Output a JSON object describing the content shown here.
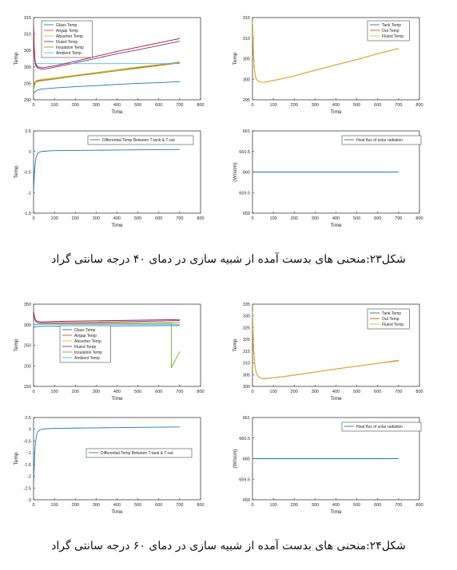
{
  "figure_captions": [
    "شکل۲۳:منحنی های بدست آمده از شبیه سازی در دمای ۴۰ درجه سانتی گراد",
    "شکل۲۴:منحنی های بدست آمده از شبیه سازی در دمای ۶۰ درجه سانتی گراد"
  ],
  "chart_data": [
    {
      "type": "line",
      "xlabel": "Time",
      "ylabel": "Temp",
      "xlim": [
        0,
        800
      ],
      "ylim": [
        290,
        315
      ],
      "xticks": [
        0,
        100,
        200,
        300,
        400,
        500,
        600,
        700,
        800
      ],
      "yticks": [
        290,
        295,
        300,
        305,
        310,
        315
      ],
      "legend_position": "top-left",
      "series": [
        {
          "name": "Glass Temp",
          "color": "#1f77b4",
          "x": [
            0,
            5,
            10,
            20,
            40,
            100,
            200,
            300,
            400,
            500,
            600,
            700
          ],
          "y": [
            292,
            292.3,
            292.6,
            293,
            293.3,
            293.6,
            294,
            294.3,
            294.7,
            295,
            295.2,
            295.5
          ]
        },
        {
          "name": "Airgap Temp",
          "color": "#d95319",
          "x": [
            0,
            5,
            10,
            20,
            40,
            100,
            200,
            300,
            400,
            500,
            600,
            700
          ],
          "y": [
            293,
            294.5,
            295.3,
            295.6,
            295.8,
            296.3,
            297.2,
            298,
            298.8,
            299.6,
            300.4,
            301.2
          ]
        },
        {
          "name": "Absorber Temp",
          "color": "#edb120",
          "x": [
            0,
            5,
            10,
            20,
            40,
            100,
            200,
            300,
            400,
            500,
            600,
            700
          ],
          "y": [
            293.5,
            295.2,
            295.8,
            296,
            296.2,
            296.7,
            297.5,
            298.3,
            299.2,
            300,
            300.7,
            301.5
          ]
        },
        {
          "name": "Fluied Temp",
          "color": "#7e2f8e",
          "x": [
            0,
            3,
            6,
            10,
            20,
            40,
            60,
            100,
            200,
            300,
            400,
            500,
            600,
            700
          ],
          "y": [
            312,
            305,
            302,
            300.5,
            299.6,
            299.3,
            299.4,
            299.9,
            301.2,
            302.6,
            304,
            305.2,
            306.5,
            307.8
          ]
        },
        {
          "name": "Insulation Temp",
          "color": "#77ac30",
          "x": [
            0,
            5,
            10,
            20,
            40,
            100,
            200,
            300,
            400,
            500,
            600,
            700
          ],
          "y": [
            293,
            294.6,
            295.3,
            295.8,
            296,
            296.4,
            297.3,
            298.1,
            298.9,
            299.8,
            300.6,
            301.4
          ]
        },
        {
          "name": "Ambient Temp",
          "color": "#4dbeee",
          "x": [
            0,
            700
          ],
          "y": [
            301,
            301
          ]
        },
        {
          "name": "",
          "color": "#a2142f",
          "x": [
            0,
            3,
            6,
            10,
            20,
            40,
            100,
            200,
            300,
            400,
            500,
            600,
            700
          ],
          "y": [
            313,
            306,
            302.5,
            301,
            300,
            299.7,
            300.3,
            301.7,
            303.2,
            304.7,
            306,
            307.3,
            308.6
          ]
        }
      ]
    },
    {
      "type": "line",
      "xlabel": "Time",
      "ylabel": "Temp",
      "xlim": [
        0,
        800
      ],
      "ylim": [
        295,
        315
      ],
      "xticks": [
        0,
        100,
        200,
        300,
        400,
        500,
        600,
        700,
        800
      ],
      "yticks": [
        295,
        300,
        305,
        310,
        315
      ],
      "legend_position": "top-right",
      "series": [
        {
          "name": "Tank Temp",
          "color": "#1f77b4",
          "x": [
            0,
            2,
            5,
            10,
            15,
            20,
            30,
            40,
            50,
            60,
            80,
            100,
            150,
            200,
            300,
            400,
            500,
            600,
            700
          ],
          "y": [
            314,
            311,
            306,
            302,
            300.5,
            299.9,
            299.5,
            299.3,
            299.25,
            299.3,
            299.5,
            299.7,
            300.2,
            300.8,
            302.2,
            303.5,
            304.8,
            306.2,
            307.5
          ]
        },
        {
          "name": "Out Temp",
          "color": "#d95319",
          "x": [
            0,
            2,
            5,
            10,
            15,
            20,
            30,
            40,
            50,
            60,
            80,
            100,
            150,
            200,
            300,
            400,
            500,
            600,
            700
          ],
          "y": [
            314,
            311,
            306,
            302,
            300.5,
            299.9,
            299.5,
            299.3,
            299.25,
            299.3,
            299.5,
            299.7,
            300.2,
            300.8,
            302.2,
            303.5,
            304.8,
            306.2,
            307.5
          ]
        },
        {
          "name": "Fluied Temp",
          "color": "#edb120",
          "x": [
            0,
            2,
            5,
            10,
            15,
            20,
            30,
            40,
            50,
            60,
            80,
            100,
            150,
            200,
            300,
            400,
            500,
            600,
            700
          ],
          "y": [
            314,
            311,
            306,
            302,
            300.5,
            299.9,
            299.5,
            299.3,
            299.25,
            299.3,
            299.5,
            299.7,
            300.2,
            300.8,
            302.2,
            303.5,
            304.8,
            306.2,
            307.5
          ]
        }
      ]
    },
    {
      "type": "line",
      "xlabel": "Time",
      "ylabel": "Temp",
      "xlim": [
        0,
        800
      ],
      "ylim": [
        -1.5,
        0.5
      ],
      "xticks": [
        0,
        100,
        200,
        300,
        400,
        500,
        600,
        700,
        800
      ],
      "yticks": [
        -1.5,
        -1,
        -0.5,
        0,
        0.5
      ],
      "legend_position": "top-right",
      "series": [
        {
          "name": "Differential Temp Between T-tank & T-out",
          "color": "#1f77b4",
          "x": [
            0,
            2,
            5,
            8,
            12,
            16,
            20,
            30,
            40,
            60,
            80,
            100,
            200,
            300,
            400,
            500,
            600,
            700
          ],
          "y": [
            -1,
            -0.75,
            -0.45,
            -0.28,
            -0.15,
            -0.08,
            -0.04,
            -0.01,
            0,
            0.01,
            0.015,
            0.02,
            0.025,
            0.03,
            0.035,
            0.04,
            0.045,
            0.05
          ]
        }
      ]
    },
    {
      "type": "line",
      "xlabel": "Time",
      "ylabel": "(W/scm)",
      "xlim": [
        0,
        800
      ],
      "ylim": [
        659,
        661
      ],
      "xticks": [
        0,
        100,
        200,
        300,
        400,
        500,
        600,
        700,
        800
      ],
      "yticks": [
        659,
        659.5,
        660,
        660.5,
        661
      ],
      "legend_position": "top-right",
      "series": [
        {
          "name": "Heat flux of solar radiation",
          "color": "#1f77b4",
          "x": [
            0,
            700
          ],
          "y": [
            660,
            660
          ]
        }
      ]
    },
    {
      "type": "line",
      "xlabel": "Time",
      "ylabel": "Temp",
      "xlim": [
        0,
        800
      ],
      "ylim": [
        150,
        350
      ],
      "xticks": [
        0,
        100,
        200,
        300,
        400,
        500,
        600,
        700,
        800
      ],
      "yticks": [
        150,
        200,
        250,
        300,
        350
      ],
      "legend_position": "center",
      "series": [
        {
          "name": "Glass Temp",
          "color": "#1f77b4",
          "x": [
            0,
            10,
            30,
            100,
            300,
            500,
            700
          ],
          "y": [
            294,
            295,
            296,
            296.5,
            297,
            297.5,
            298
          ]
        },
        {
          "name": "Airgap Temp",
          "color": "#d95319",
          "x": [
            0,
            10,
            30,
            100,
            300,
            500,
            700
          ],
          "y": [
            300,
            301,
            301.5,
            302,
            303,
            304,
            305
          ]
        },
        {
          "name": "Absorber Temp",
          "color": "#edb120",
          "x": [
            0,
            10,
            30,
            100,
            300,
            500,
            700
          ],
          "y": [
            301,
            301.5,
            302,
            302.5,
            303.5,
            304.5,
            305.5
          ]
        },
        {
          "name": "Fluied Temp",
          "color": "#7e2f8e",
          "x": [
            0,
            5,
            10,
            20,
            40,
            100,
            300,
            500,
            700
          ],
          "y": [
            330,
            315,
            308,
            305,
            304,
            304.5,
            306,
            308,
            310
          ]
        },
        {
          "name": "Insulation Temp",
          "color": "#77ac30",
          "x": [
            0,
            10,
            30,
            100,
            300,
            500,
            660,
            660,
            680,
            700
          ],
          "y": [
            300,
            300.5,
            301,
            301.5,
            302.5,
            303.5,
            304,
            195,
            215,
            235
          ]
        },
        {
          "name": "Ambient Temp",
          "color": "#4dbeee",
          "x": [
            0,
            700
          ],
          "y": [
            301,
            301
          ]
        },
        {
          "name": "",
          "color": "#a2142f",
          "x": [
            0,
            5,
            10,
            20,
            40,
            100,
            300,
            500,
            700
          ],
          "y": [
            332,
            318,
            311,
            308,
            307,
            308,
            309.5,
            311,
            312.5
          ]
        }
      ]
    },
    {
      "type": "line",
      "xlabel": "Time",
      "ylabel": "Temp",
      "xlim": [
        0,
        800
      ],
      "ylim": [
        300,
        335
      ],
      "xticks": [
        0,
        100,
        200,
        300,
        400,
        500,
        600,
        700,
        800
      ],
      "yticks": [
        300,
        305,
        310,
        315,
        320,
        325,
        330,
        335
      ],
      "legend_position": "top-right",
      "series": [
        {
          "name": "Tank Temp",
          "color": "#1f77b4",
          "x": [
            0,
            2,
            5,
            10,
            15,
            20,
            30,
            40,
            50,
            60,
            80,
            100,
            150,
            200,
            300,
            400,
            500,
            600,
            700
          ],
          "y": [
            332,
            325,
            316,
            310,
            307,
            305.3,
            304,
            303.5,
            303.3,
            303.3,
            303.5,
            303.7,
            304.2,
            304.8,
            306.1,
            307.4,
            308.6,
            309.8,
            311
          ]
        },
        {
          "name": "Out Temp",
          "color": "#d95319",
          "x": [
            0,
            2,
            5,
            10,
            15,
            20,
            30,
            40,
            50,
            60,
            80,
            100,
            150,
            200,
            300,
            400,
            500,
            600,
            700
          ],
          "y": [
            332,
            325,
            316,
            310,
            307,
            305.3,
            304,
            303.5,
            303.3,
            303.3,
            303.5,
            303.7,
            304.2,
            304.8,
            306.1,
            307.4,
            308.6,
            309.8,
            311
          ]
        },
        {
          "name": "Fluied Temp",
          "color": "#edb120",
          "x": [
            0,
            2,
            5,
            10,
            15,
            20,
            30,
            40,
            50,
            60,
            80,
            100,
            150,
            200,
            300,
            400,
            500,
            600,
            700
          ],
          "y": [
            332,
            325,
            316,
            310,
            307,
            305.3,
            304,
            303.5,
            303.3,
            303.3,
            303.5,
            303.7,
            304.2,
            304.8,
            306.1,
            307.4,
            308.6,
            309.8,
            311.2
          ]
        }
      ]
    },
    {
      "type": "line",
      "xlabel": "Time",
      "ylabel": "Temp",
      "xlim": [
        0,
        800
      ],
      "ylim": [
        -3,
        0.5
      ],
      "xticks": [
        0,
        100,
        200,
        300,
        400,
        500,
        600,
        700,
        800
      ],
      "yticks": [
        -3,
        -2.5,
        -2,
        -1.5,
        -1,
        -0.5,
        0,
        0.5
      ],
      "legend_position": "center",
      "series": [
        {
          "name": "Differential Temp Between T-tank & T-out",
          "color": "#1f77b4",
          "x": [
            0,
            2,
            5,
            8,
            12,
            16,
            20,
            30,
            40,
            60,
            80,
            100,
            200,
            300,
            400,
            500,
            600,
            700
          ],
          "y": [
            -2.4,
            -1.8,
            -1.1,
            -0.7,
            -0.4,
            -0.2,
            -0.1,
            -0.03,
            0,
            0.02,
            0.03,
            0.04,
            0.05,
            0.06,
            0.07,
            0.08,
            0.09,
            0.1
          ]
        }
      ]
    },
    {
      "type": "line",
      "xlabel": "Time",
      "ylabel": "(W/scm)",
      "xlim": [
        0,
        800
      ],
      "ylim": [
        659,
        661
      ],
      "xticks": [
        0,
        100,
        200,
        300,
        400,
        500,
        600,
        700,
        800
      ],
      "yticks": [
        659,
        659.5,
        660,
        660.5,
        661
      ],
      "legend_position": "top-right",
      "series": [
        {
          "name": "Heat flux of solar radiation",
          "color": "#1f77b4",
          "x": [
            0,
            700
          ],
          "y": [
            660,
            660
          ]
        }
      ]
    }
  ]
}
